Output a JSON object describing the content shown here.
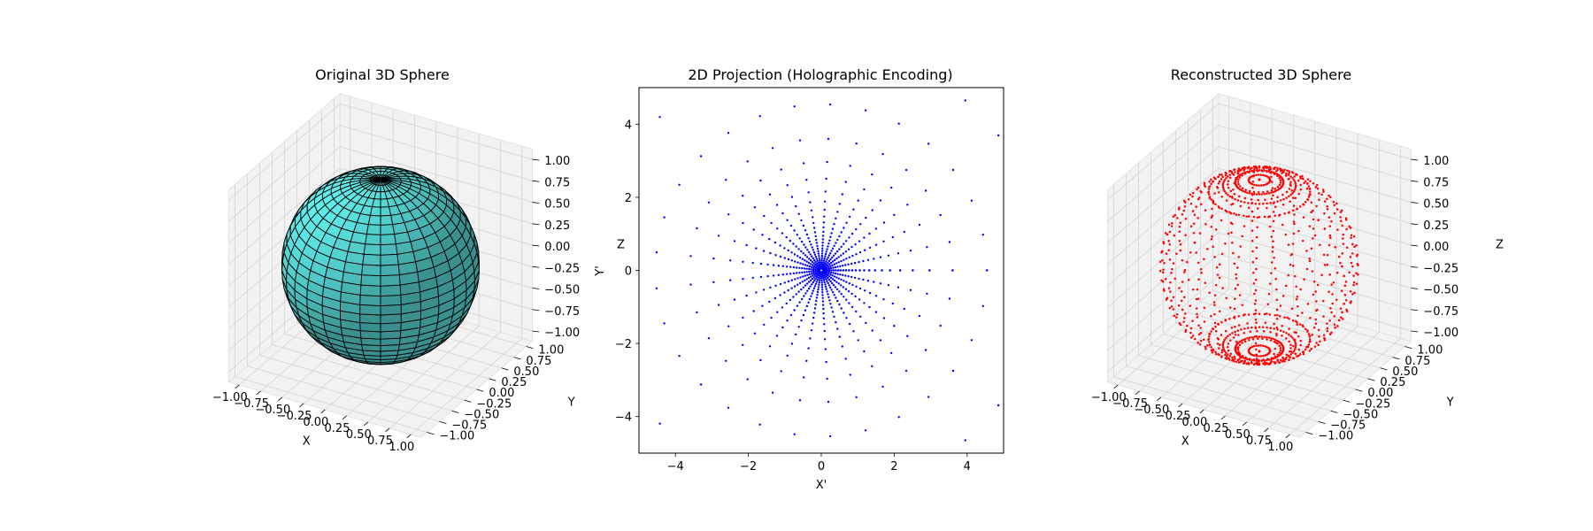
{
  "chart_data": [
    {
      "type": "surface3d",
      "title": "Original 3D Sphere",
      "xlabel": "X",
      "ylabel": "Y",
      "zlabel": "Z",
      "xlim": [
        -1,
        1
      ],
      "ylim": [
        -1,
        1
      ],
      "zlim": [
        -1,
        1
      ],
      "xticks": [
        "−1.00",
        "−0.75",
        "−0.50",
        "−0.25",
        "0.00",
        "0.25",
        "0.50",
        "0.75",
        "1.00"
      ],
      "yticks": [
        "−1.00",
        "−0.75",
        "−0.50",
        "−0.25",
        "0.00",
        "0.25",
        "0.50",
        "0.75",
        "1.00"
      ],
      "zticks": [
        "−1.00",
        "−0.75",
        "−0.50",
        "−0.25",
        "0.00",
        "0.25",
        "0.50",
        "0.75",
        "1.00"
      ],
      "surface": {
        "shape": "unit sphere",
        "radius": 1,
        "color": "#5ff0ee",
        "edge_color": "#000000",
        "u_steps": 30,
        "v_steps": 30
      },
      "grid": true
    },
    {
      "type": "scatter",
      "title": "2D Projection (Holographic Encoding)",
      "xlabel": "X'",
      "ylabel": "Y'",
      "xlim": [
        -5,
        5
      ],
      "ylim": [
        -5,
        5
      ],
      "xticks": [
        "−4",
        "−2",
        "0",
        "2",
        "4"
      ],
      "yticks": [
        "−4",
        "−2",
        "0",
        "2",
        "4"
      ],
      "point_color": "#0000ff",
      "projection": "stereographic projection of 30×30 sphere grid points",
      "grid": false
    },
    {
      "type": "scatter3d",
      "title": "Reconstructed 3D Sphere",
      "xlabel": "X",
      "ylabel": "Y",
      "zlabel": "Z",
      "xlim": [
        -1,
        1
      ],
      "ylim": [
        -1,
        1
      ],
      "zlim": [
        -1,
        1
      ],
      "xticks": [
        "−1.00",
        "−0.75",
        "−0.50",
        "−0.25",
        "0.00",
        "0.25",
        "0.50",
        "0.75",
        "1.00"
      ],
      "yticks": [
        "−1.00",
        "−0.75",
        "−0.50",
        "−0.25",
        "0.00",
        "0.25",
        "0.50",
        "0.75",
        "1.00"
      ],
      "zticks": [
        "−1.00",
        "−0.75",
        "−0.50",
        "−0.25",
        "0.00",
        "0.25",
        "0.50",
        "0.75",
        "1.00"
      ],
      "point_color": "#ff0000",
      "points": "30×30 sphere grid points (inverse projection)",
      "grid": true
    }
  ]
}
